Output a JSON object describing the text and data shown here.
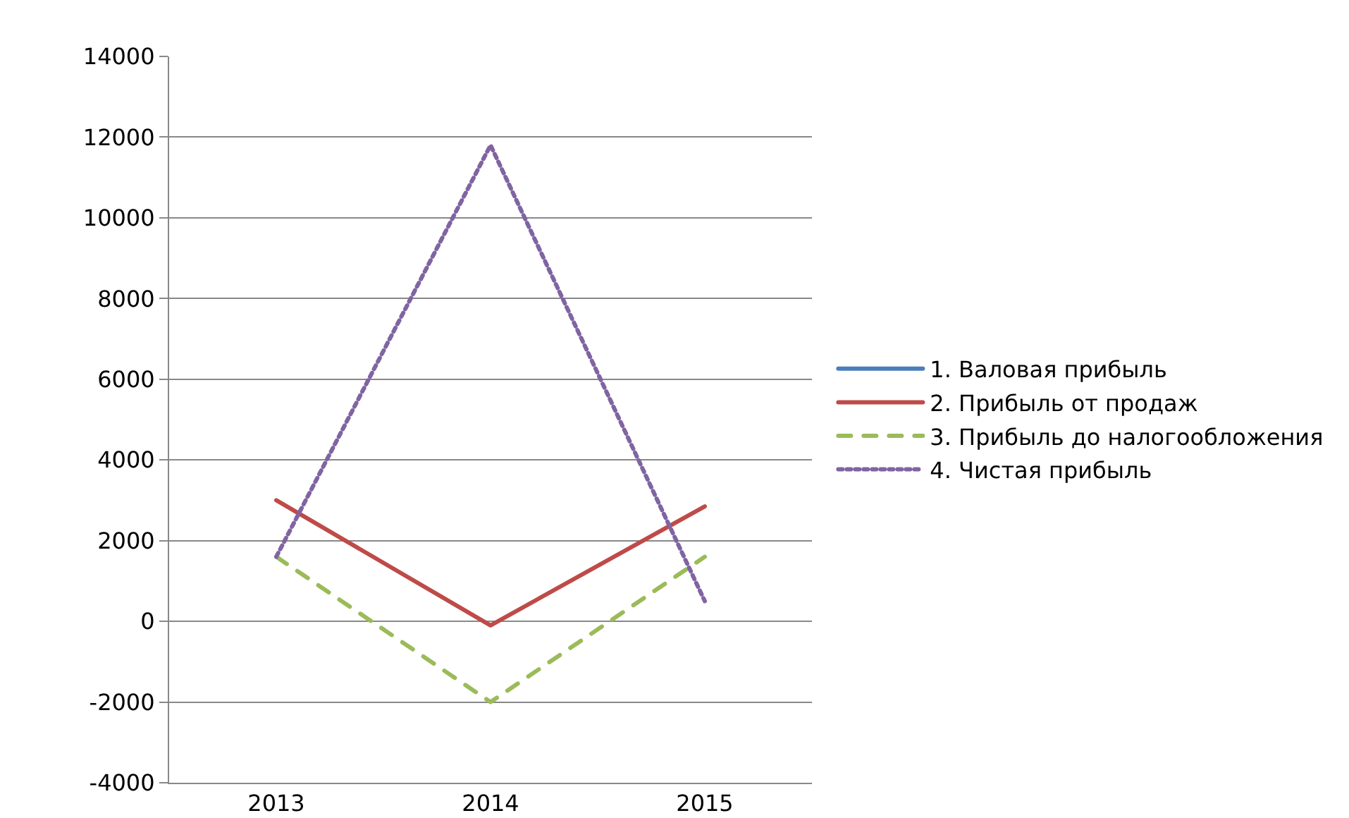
{
  "chart_data": {
    "type": "line",
    "categories": [
      "2013",
      "2014",
      "2015"
    ],
    "series": [
      {
        "name": "1. Валовая прибыль",
        "color": "#4a7ebb",
        "line_style": "solid",
        "values": [
          null,
          null,
          null
        ]
      },
      {
        "name": "2. Прибыль от продаж",
        "color": "#be4b48",
        "line_style": "solid",
        "values": [
          3000,
          -100,
          2850
        ]
      },
      {
        "name": "3. Прибыль до налогообложения",
        "color": "#9bbb59",
        "line_style": "dashed",
        "values": [
          1600,
          -2000,
          1600
        ]
      },
      {
        "name": "4. Чистая прибыль",
        "color": "#8064a2",
        "line_style": "dotted",
        "values": [
          1600,
          11800,
          500
        ]
      }
    ],
    "ylim": [
      -4000,
      14000
    ],
    "yticks": [
      -4000,
      -2000,
      0,
      2000,
      4000,
      6000,
      8000,
      10000,
      12000,
      14000
    ],
    "grid": "y",
    "legend": "right",
    "marker": "none"
  }
}
